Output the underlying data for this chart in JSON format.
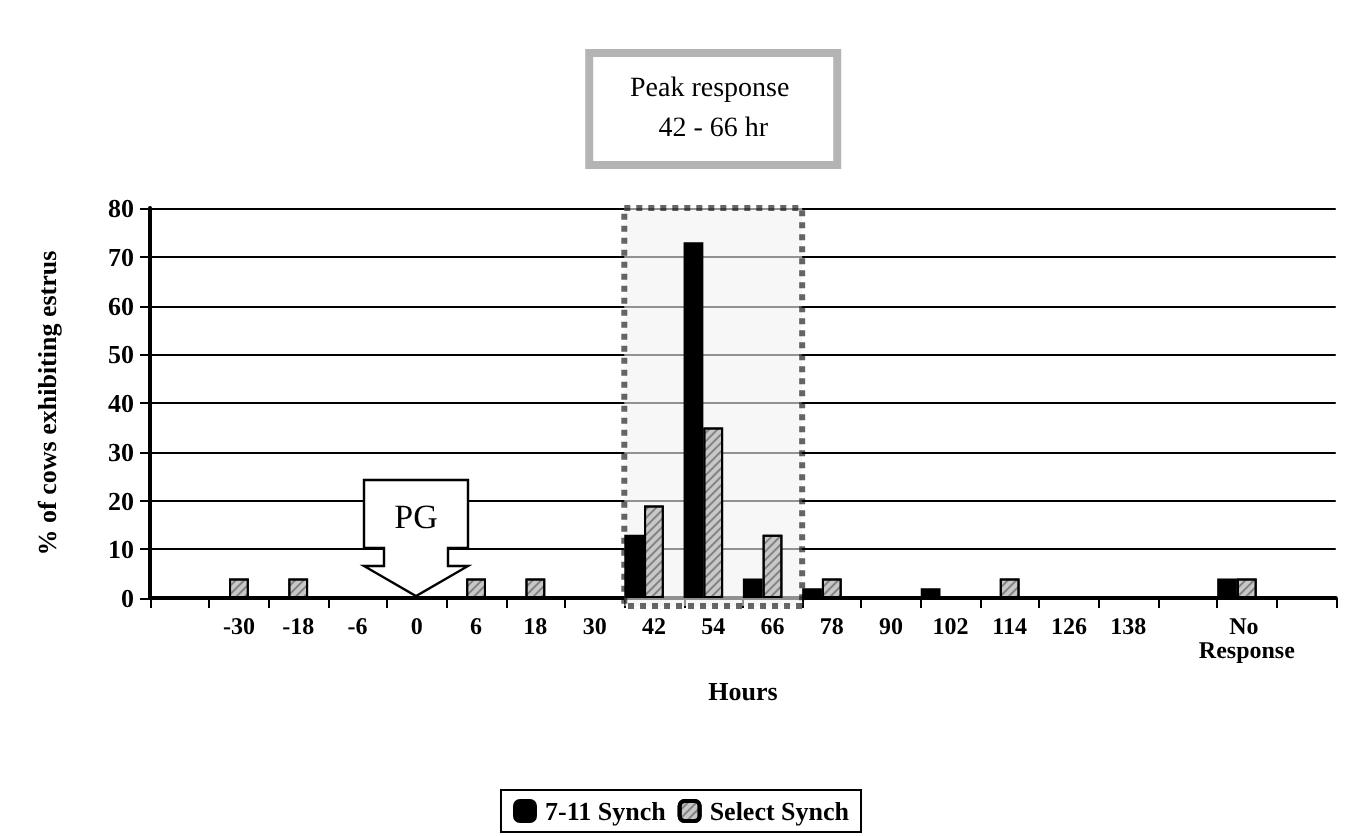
{
  "chart_data": {
    "type": "bar",
    "xlabel": "Hours",
    "ylabel": "% of cows exhibiting estrus",
    "categories": [
      null,
      "-30",
      "-18",
      "-6",
      "0",
      "6",
      "18",
      "30",
      "42",
      "54",
      "66",
      "78",
      "90",
      "102",
      "114",
      "126",
      "138",
      null,
      "No Response",
      null
    ],
    "series": [
      {
        "name": "7-11 Synch",
        "color": "#000000",
        "values": [
          null,
          null,
          null,
          null,
          null,
          null,
          null,
          null,
          13,
          73,
          4,
          2,
          null,
          2,
          null,
          null,
          null,
          null,
          4,
          null
        ]
      },
      {
        "name": "Select Synch",
        "color": "#c8c8c8",
        "values": [
          null,
          4,
          4,
          null,
          null,
          4,
          4,
          null,
          19,
          35,
          13,
          4,
          null,
          null,
          4,
          null,
          null,
          null,
          4,
          null
        ]
      }
    ],
    "ylim": [
      0,
      80
    ],
    "yticks": [
      0,
      10,
      20,
      30,
      40,
      50,
      60,
      70,
      80
    ],
    "grid": "y",
    "legend": "bottom",
    "bands": [
      {
        "axis": "x",
        "from": "42",
        "to": "66",
        "label": "Peak response 42 - 66 hr",
        "color": "#f2f2f2"
      }
    ],
    "ref_lines": [
      {
        "axis": "x",
        "value": "0",
        "label": "PG"
      }
    ]
  }
}
